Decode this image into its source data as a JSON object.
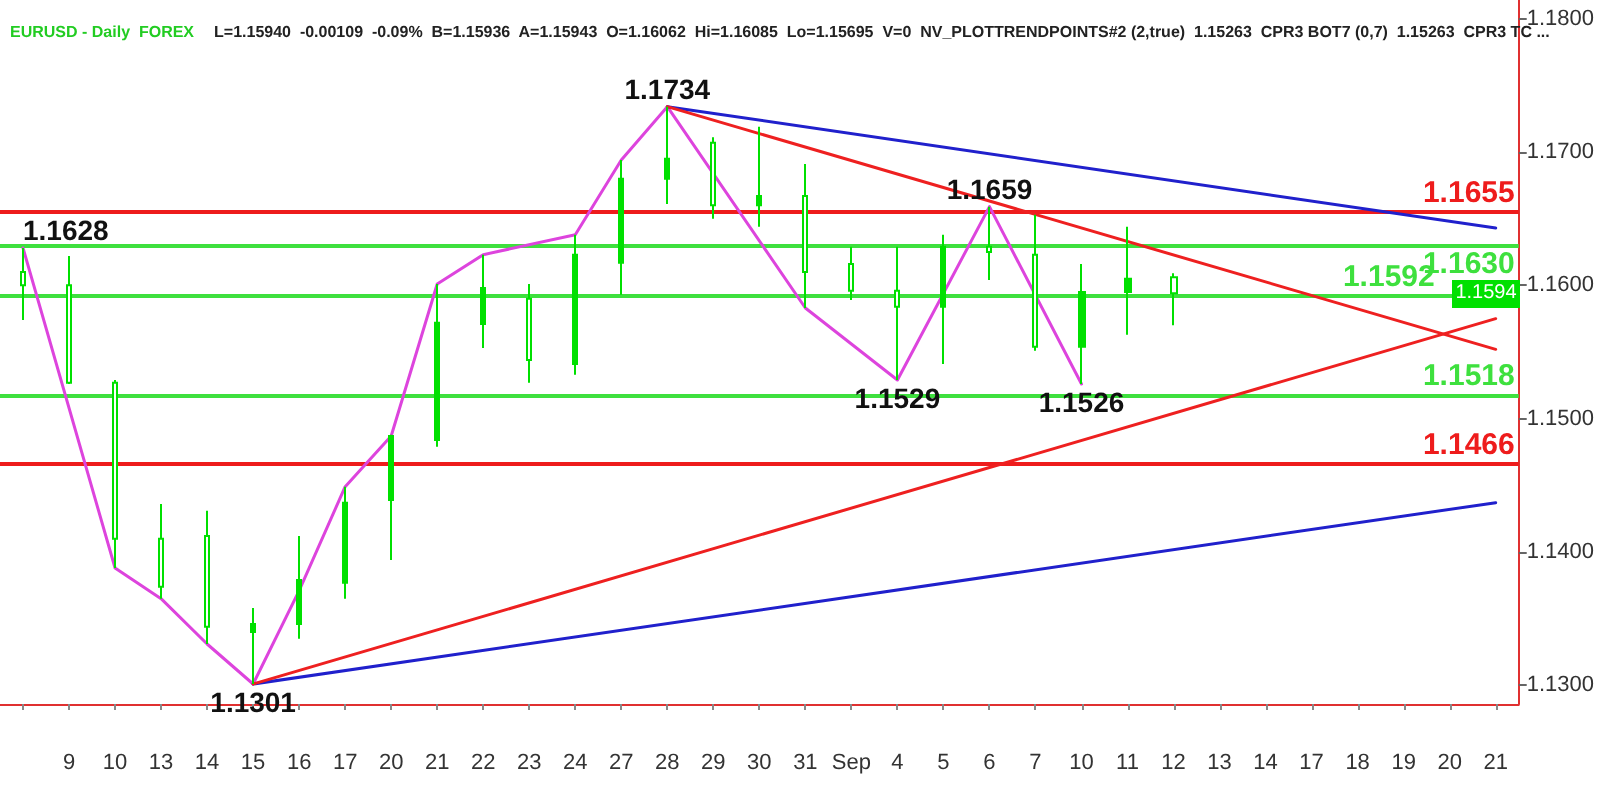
{
  "chart_data": {
    "type": "candlestick",
    "title": "EURUSD - Daily  FOREX",
    "subtitle": "L=1.15940  -0.00109  -0.09%  B=1.15936  A=1.15943  O=1.16062  Hi=1.16085  Lo=1.15695  V=0  NV_PLOTTRENDPOINTS#2 (2,true)  1.15263  CPR3 BOT7 (0,7)  1.15263  CPR3 TC ...",
    "categories": [
      null,
      "9",
      "10",
      "13",
      "14",
      "15",
      "16",
      "17",
      "20",
      "21",
      "22",
      "23",
      "24",
      "27",
      "28",
      "29",
      "30",
      "31",
      "Sep",
      "4",
      "5",
      "6",
      "7",
      "10",
      "11",
      "12",
      "13",
      "14",
      "17",
      "18",
      "19",
      "20",
      "21"
    ],
    "color": "#00e000",
    "ohlc": [
      [
        1.161,
        1.1628,
        1.1574,
        1.16
      ],
      [
        1.16,
        1.1622,
        1.1526,
        1.1527
      ],
      [
        1.1527,
        1.1529,
        1.1388,
        1.141
      ],
      [
        1.141,
        1.1436,
        1.1365,
        1.1374
      ],
      [
        1.1412,
        1.1431,
        1.1331,
        1.1344
      ],
      [
        1.134,
        1.1358,
        1.1301,
        1.1346
      ],
      [
        1.1346,
        1.1412,
        1.1335,
        1.1379
      ],
      [
        1.1377,
        1.1449,
        1.1365,
        1.1437
      ],
      [
        1.1439,
        1.1488,
        1.1394,
        1.1487
      ],
      [
        1.1484,
        1.1601,
        1.1479,
        1.1572
      ],
      [
        1.1571,
        1.1623,
        1.1553,
        1.1598
      ],
      [
        1.159,
        1.1601,
        1.1527,
        1.1544
      ],
      [
        1.1541,
        1.1638,
        1.1533,
        1.1623
      ],
      [
        1.1617,
        1.1694,
        1.1593,
        1.168
      ],
      [
        1.168,
        1.1734,
        1.1661,
        1.1695
      ],
      [
        1.1707,
        1.1711,
        1.165,
        1.166
      ],
      [
        1.166,
        1.1719,
        1.1644,
        1.1667
      ],
      [
        1.1667,
        1.1691,
        1.1583,
        1.161
      ],
      [
        1.1616,
        1.1629,
        1.1589,
        1.1596
      ],
      [
        1.1596,
        1.1629,
        1.1529,
        1.1584
      ],
      [
        1.1584,
        1.1638,
        1.1541,
        1.1629
      ],
      [
        1.1629,
        1.1659,
        1.1604,
        1.1625
      ],
      [
        1.1623,
        1.1653,
        1.1551,
        1.1554
      ],
      [
        1.1554,
        1.1616,
        1.1526,
        1.1595
      ],
      [
        1.1595,
        1.1644,
        1.1563,
        1.1605
      ],
      [
        1.1606,
        1.1609,
        1.157,
        1.1594
      ],
      null,
      null,
      null,
      null,
      null,
      null,
      null
    ],
    "series": [
      {
        "type": "line",
        "color": "#dd44dd",
        "values": [
          1.1628,
          null,
          1.1388,
          1.1365,
          1.1331,
          1.1301,
          1.1371,
          1.1449,
          1.1487,
          1.1601,
          1.1623,
          null,
          1.1638,
          1.1694,
          1.1734,
          null,
          null,
          1.1583,
          null,
          1.1529,
          null,
          1.1659,
          null,
          1.1526,
          null,
          null,
          null,
          null,
          null,
          null,
          null,
          null,
          null
        ],
        "value_labels": [
          "1.1628",
          null,
          null,
          null,
          null,
          "1.1301",
          null,
          null,
          null,
          null,
          null,
          null,
          null,
          null,
          "1.1734",
          null,
          null,
          null,
          null,
          "1.1529",
          null,
          "1.1659",
          null,
          "1.1526",
          null,
          null,
          null,
          null,
          null,
          null,
          null,
          null,
          null
        ]
      },
      {
        "type": "line",
        "color": "#2020cc",
        "values": [
          null,
          null,
          null,
          null,
          null,
          null,
          null,
          null,
          null,
          null,
          null,
          null,
          null,
          null,
          1.1734,
          null,
          null,
          null,
          null,
          null,
          null,
          null,
          null,
          null,
          null,
          null,
          null,
          null,
          null,
          null,
          null,
          null,
          1.1643
        ]
      },
      {
        "type": "line",
        "color": "#ee2020",
        "values": [
          null,
          null,
          null,
          null,
          null,
          null,
          null,
          null,
          null,
          null,
          null,
          null,
          null,
          null,
          1.1734,
          null,
          null,
          null,
          null,
          null,
          null,
          null,
          null,
          null,
          null,
          null,
          null,
          null,
          null,
          null,
          null,
          null,
          1.1552
        ]
      },
      {
        "type": "line",
        "color": "#2020cc",
        "values": [
          null,
          null,
          null,
          null,
          null,
          1.1301,
          null,
          null,
          null,
          null,
          null,
          null,
          null,
          null,
          null,
          null,
          null,
          null,
          null,
          null,
          null,
          null,
          null,
          null,
          null,
          null,
          null,
          null,
          null,
          null,
          null,
          null,
          1.1437
        ]
      },
      {
        "type": "line",
        "color": "#ee2020",
        "values": [
          null,
          null,
          null,
          null,
          null,
          1.1301,
          null,
          null,
          null,
          null,
          null,
          null,
          null,
          null,
          null,
          null,
          null,
          null,
          null,
          null,
          null,
          null,
          null,
          null,
          null,
          null,
          null,
          null,
          null,
          null,
          null,
          null,
          1.1575
        ]
      }
    ],
    "ref_lines": [
      {
        "axis": "y",
        "value": 1.1655,
        "label": "1.1655",
        "color": "#ee1c1c"
      },
      {
        "axis": "y",
        "value": 1.163,
        "label": "1.1630",
        "color": "#3ee03e"
      },
      {
        "axis": "y",
        "value": 1.1592,
        "label": "1.1592",
        "color": "#3ee03e"
      },
      {
        "axis": "y",
        "value": 1.1518,
        "label": "1.1518",
        "color": "#3ee03e"
      },
      {
        "axis": "y",
        "value": 1.1466,
        "label": "1.1466",
        "color": "#ee1c1c"
      }
    ],
    "annotations": [
      "1.1594"
    ],
    "ylim": [
      1.1286,
      1.1814
    ],
    "yticks": [
      {
        "value": 1.13,
        "label": "1.1300"
      },
      {
        "value": 1.14,
        "label": "1.1400"
      },
      {
        "value": 1.15,
        "label": "1.1500"
      },
      {
        "value": 1.16,
        "label": "1.1600"
      },
      {
        "value": 1.17,
        "label": "1.1700"
      },
      {
        "value": 1.18,
        "label": "1.1800"
      }
    ],
    "grid": false
  }
}
